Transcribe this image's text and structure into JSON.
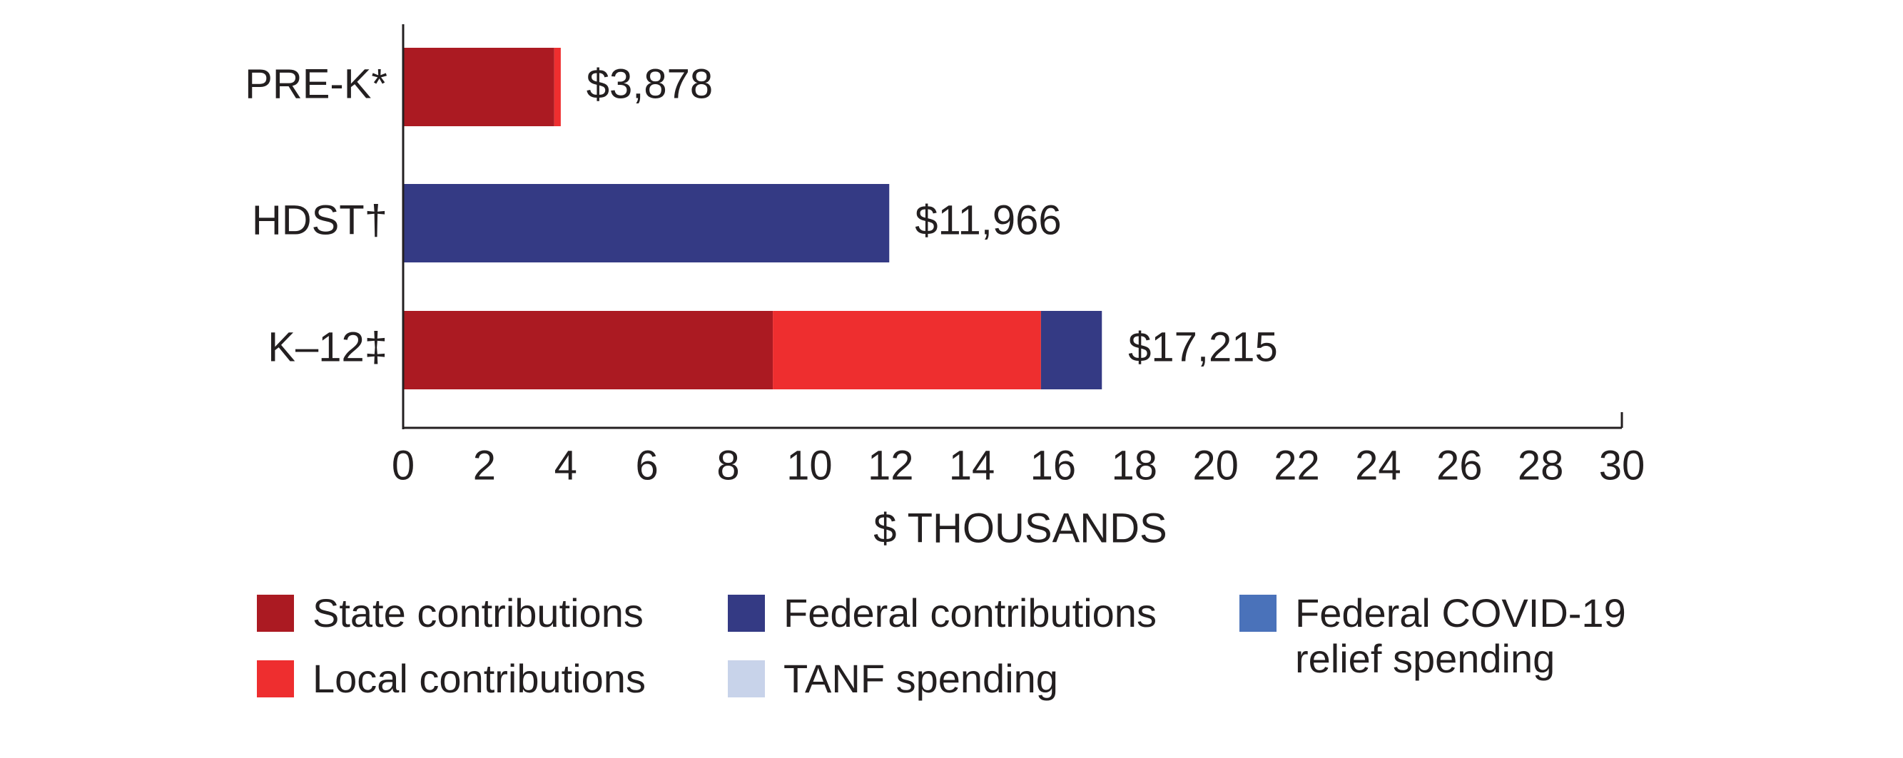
{
  "chart_data": {
    "type": "stacked-barh",
    "categories": [
      "PRE-K*",
      "HDST†",
      "K–12‡"
    ],
    "series": [
      {
        "name": "State contributions",
        "color": "#ab1a22",
        "values": [
          3.72,
          null,
          9.1
        ]
      },
      {
        "name": "Local contributions",
        "color": "#ee2e2f",
        "values": [
          0.16,
          null,
          6.6
        ]
      },
      {
        "name": "Federal contributions",
        "color": "#343a84",
        "values": [
          null,
          11.966,
          1.5
        ]
      },
      {
        "name": "TANF spending",
        "color": "#c8d3ea",
        "values": [
          null,
          null,
          null
        ]
      },
      {
        "name": "Federal COVID-19 relief spending",
        "color": "#4a72ba",
        "values": [
          null,
          null,
          null
        ]
      }
    ],
    "totals": [
      3.878,
      11.966,
      17.215
    ],
    "total_labels": [
      "$3,878",
      "$11,966",
      "$17,215"
    ],
    "xlabel": "$ THOUSANDS",
    "xlim": [
      0,
      30
    ],
    "xticks": [
      0,
      2,
      4,
      6,
      8,
      10,
      12,
      14,
      16,
      18,
      20,
      22,
      24,
      26,
      28,
      30
    ]
  }
}
